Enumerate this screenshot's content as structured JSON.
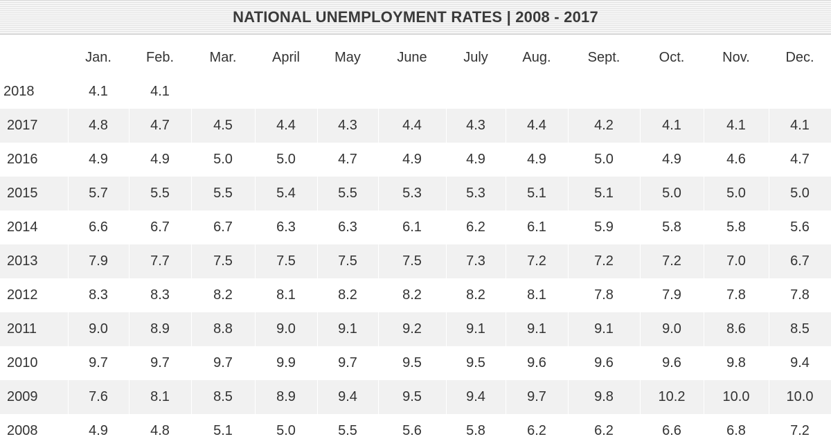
{
  "title": "NATIONAL UNEMPLOYMENT RATES | 2008 - 2017",
  "columns": [
    "",
    "Jan.",
    "Feb.",
    "Mar.",
    "April",
    "May",
    "June",
    "July",
    "Aug.",
    "Sept.",
    "Oct.",
    "Nov.",
    "Dec."
  ],
  "rows": [
    {
      "year": "2018",
      "values": [
        "4.1",
        "4.1",
        "",
        "",
        "",
        "",
        "",
        "",
        "",
        "",
        "",
        ""
      ]
    },
    {
      "year": "2017",
      "values": [
        "4.8",
        "4.7",
        "4.5",
        "4.4",
        "4.3",
        "4.4",
        "4.3",
        "4.4",
        "4.2",
        "4.1",
        "4.1",
        "4.1"
      ]
    },
    {
      "year": "2016",
      "values": [
        "4.9",
        "4.9",
        "5.0",
        "5.0",
        "4.7",
        "4.9",
        "4.9",
        "4.9",
        "5.0",
        "4.9",
        "4.6",
        "4.7"
      ]
    },
    {
      "year": "2015",
      "values": [
        "5.7",
        "5.5",
        "5.5",
        "5.4",
        "5.5",
        "5.3",
        "5.3",
        "5.1",
        "5.1",
        "5.0",
        "5.0",
        "5.0"
      ]
    },
    {
      "year": "2014",
      "values": [
        "6.6",
        "6.7",
        "6.7",
        "6.3",
        "6.3",
        "6.1",
        "6.2",
        "6.1",
        "5.9",
        "5.8",
        "5.8",
        "5.6"
      ]
    },
    {
      "year": "2013",
      "values": [
        "7.9",
        "7.7",
        "7.5",
        "7.5",
        "7.5",
        "7.5",
        "7.3",
        "7.2",
        "7.2",
        "7.2",
        "7.0",
        "6.7"
      ]
    },
    {
      "year": "2012",
      "values": [
        "8.3",
        "8.3",
        "8.2",
        "8.1",
        "8.2",
        "8.2",
        "8.2",
        "8.1",
        "7.8",
        "7.9",
        "7.8",
        "7.8"
      ]
    },
    {
      "year": "2011",
      "values": [
        "9.0",
        "8.9",
        "8.8",
        "9.0",
        "9.1",
        "9.2",
        "9.1",
        "9.1",
        "9.1",
        "9.0",
        "8.6",
        "8.5"
      ]
    },
    {
      "year": "2010",
      "values": [
        "9.7",
        "9.7",
        "9.7",
        "9.9",
        "9.7",
        "9.5",
        "9.5",
        "9.6",
        "9.6",
        "9.6",
        "9.8",
        "9.4"
      ]
    },
    {
      "year": "2009",
      "values": [
        "7.6",
        "8.1",
        "8.5",
        "8.9",
        "9.4",
        "9.5",
        "9.4",
        "9.7",
        "9.8",
        "10.2",
        "10.0",
        "10.0"
      ]
    },
    {
      "year": "2008",
      "values": [
        "4.9",
        "4.8",
        "5.1",
        "5.0",
        "5.5",
        "5.6",
        "5.8",
        "6.2",
        "6.2",
        "6.6",
        "6.8",
        "7.2"
      ]
    }
  ],
  "colors": {
    "stripe": "#f1f1f1",
    "text": "#333333",
    "title_text": "#3a3a3a"
  }
}
